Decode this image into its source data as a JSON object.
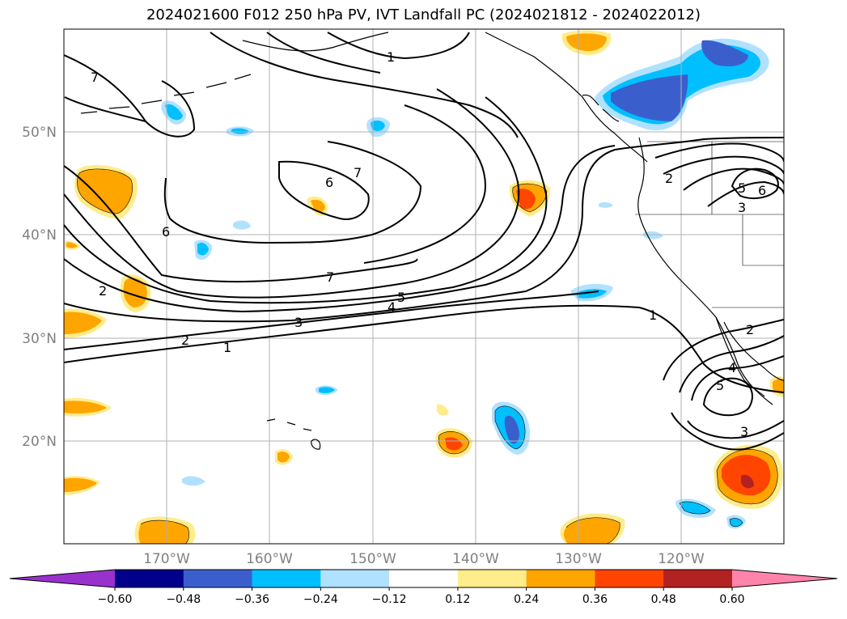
{
  "title": "2024021600 F012 250 hPa PV, IVT Landfall PC (2024021812 - 2024022012)",
  "lat_labels": [
    "50°N",
    "40°N",
    "30°N",
    "20°N"
  ],
  "lon_labels": [
    "170°W",
    "160°W",
    "150°W",
    "140°W",
    "130°W",
    "120°W"
  ],
  "colorbar": {
    "ticks": [
      "−0.60",
      "−0.48",
      "−0.36",
      "−0.24",
      "−0.12",
      "0.12",
      "0.24",
      "0.36",
      "0.48",
      "0.60"
    ],
    "colors": [
      "#9932cc",
      "#00008b",
      "#3a5fcd",
      "#00bfff",
      "#b0e2ff",
      "#ffffff",
      "#ffec8b",
      "#ffa500",
      "#ff4500",
      "#b22222",
      "#ff83aa"
    ]
  },
  "contour_labels": [
    "7",
    "1",
    "6",
    "7",
    "6",
    "7",
    "2",
    "5",
    "4",
    "3",
    "2",
    "1",
    "2",
    "5",
    "6",
    "3",
    "1",
    "2",
    "4",
    "5",
    "3"
  ]
}
